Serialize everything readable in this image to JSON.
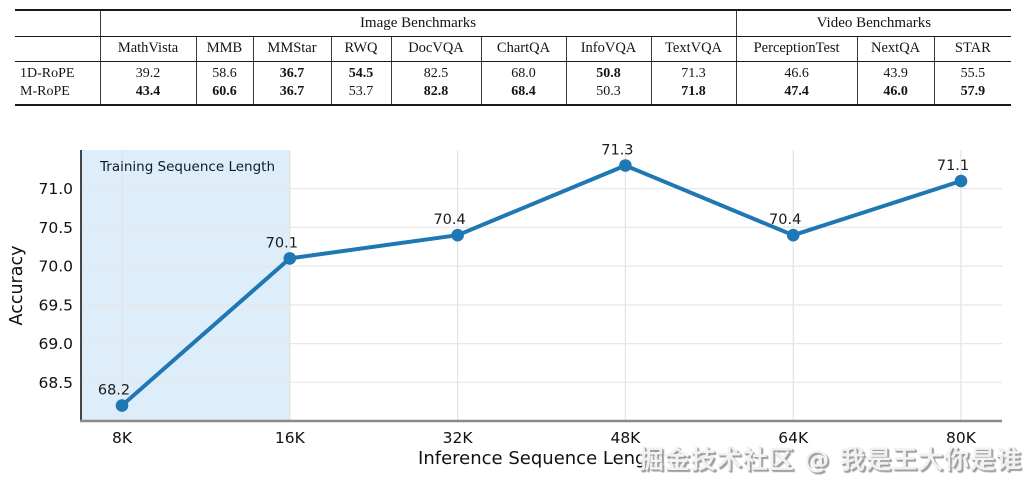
{
  "chart_data": [
    {
      "type": "table",
      "group_headers": [
        {
          "label": "",
          "span": 1
        },
        {
          "label": "Image Benchmarks",
          "span": 8
        },
        {
          "label": "Video Benchmarks",
          "span": 3
        }
      ],
      "columns": [
        "MathVista",
        "MMB",
        "MMStar",
        "RWQ",
        "DocVQA",
        "ChartQA",
        "InfoVQA",
        "TextVQA",
        "PerceptionTest",
        "NextQA",
        "STAR"
      ],
      "rows": [
        {
          "label": "1D-RoPE",
          "values": [
            "39.2",
            "58.6",
            "36.7",
            "54.5",
            "82.5",
            "68.0",
            "50.8",
            "71.3",
            "46.6",
            "43.9",
            "55.5"
          ],
          "bold": [
            false,
            false,
            true,
            true,
            false,
            false,
            true,
            false,
            false,
            false,
            false
          ]
        },
        {
          "label": "M-RoPE",
          "values": [
            "43.4",
            "60.6",
            "36.7",
            "53.7",
            "82.8",
            "68.4",
            "50.3",
            "71.8",
            "47.4",
            "46.0",
            "57.9"
          ],
          "bold": [
            true,
            true,
            true,
            false,
            true,
            true,
            false,
            true,
            true,
            true,
            true
          ]
        }
      ]
    },
    {
      "type": "line",
      "title": "",
      "categories": [
        "8K",
        "16K",
        "32K",
        "48K",
        "64K",
        "80K"
      ],
      "values": [
        68.2,
        70.1,
        70.4,
        71.3,
        70.4,
        71.1
      ],
      "point_labels": [
        "68.2",
        "70.1",
        "70.4",
        "71.3",
        "70.4",
        "71.1"
      ],
      "xlabel": "Inference Sequence Length",
      "ylabel": "Accuracy",
      "y_ticks": [
        68.5,
        69.0,
        69.5,
        70.0,
        70.5,
        71.0
      ],
      "ylim": [
        68.0,
        71.5
      ],
      "grid": true,
      "legend": "none",
      "line_color": "#1f77b4",
      "shade_color": "#ddedf9",
      "shade_label": "Training Sequence Length",
      "shade_span_categories": [
        "8K-region-start",
        "16K"
      ]
    }
  ],
  "watermark": "掘金技术社区 @ 我是王大你是谁"
}
